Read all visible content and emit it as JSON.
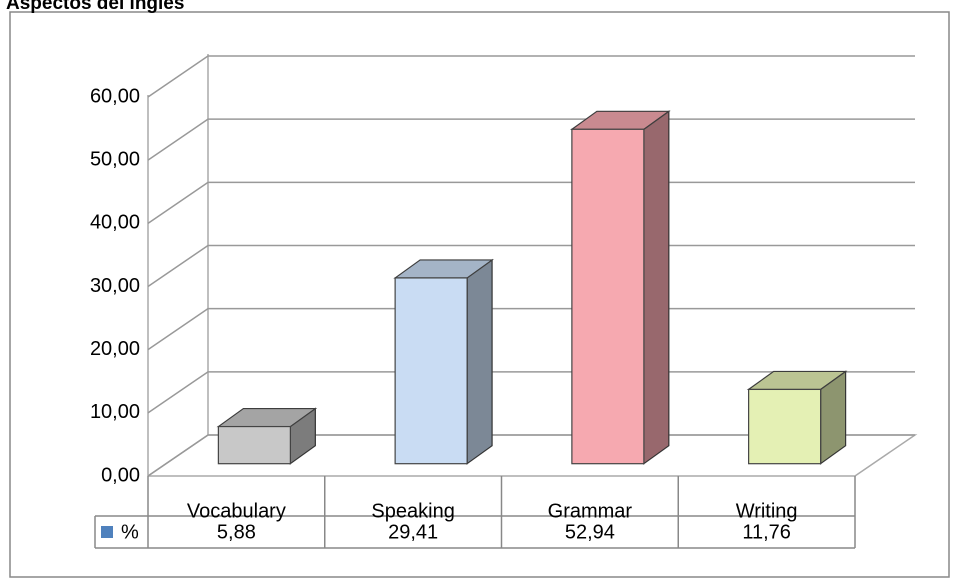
{
  "chart_data": {
    "type": "bar3d",
    "title": "Aspectos del inglés",
    "categories": [
      "Vocabulary",
      "Speaking",
      "Grammar",
      "Writing"
    ],
    "series": [
      {
        "name": "%",
        "color": "#4f81bd",
        "values": [
          5.88,
          29.41,
          52.94,
          11.76
        ],
        "value_labels": [
          "5,88",
          "29,41",
          "52,94",
          "11,76"
        ],
        "colors": [
          "#c8c8c8",
          "#c9dcf3",
          "#f6a9b0",
          "#e4f0b4"
        ]
      }
    ],
    "ylim": [
      0,
      60
    ],
    "yticks": [
      {
        "value": 0,
        "label": "0,00"
      },
      {
        "value": 10,
        "label": "10,00"
      },
      {
        "value": 20,
        "label": "20,00"
      },
      {
        "value": 30,
        "label": "30,00"
      },
      {
        "value": 40,
        "label": "40,00"
      },
      {
        "value": 50,
        "label": "50,00"
      },
      {
        "value": 60,
        "label": "60,00"
      }
    ],
    "grid": true
  }
}
